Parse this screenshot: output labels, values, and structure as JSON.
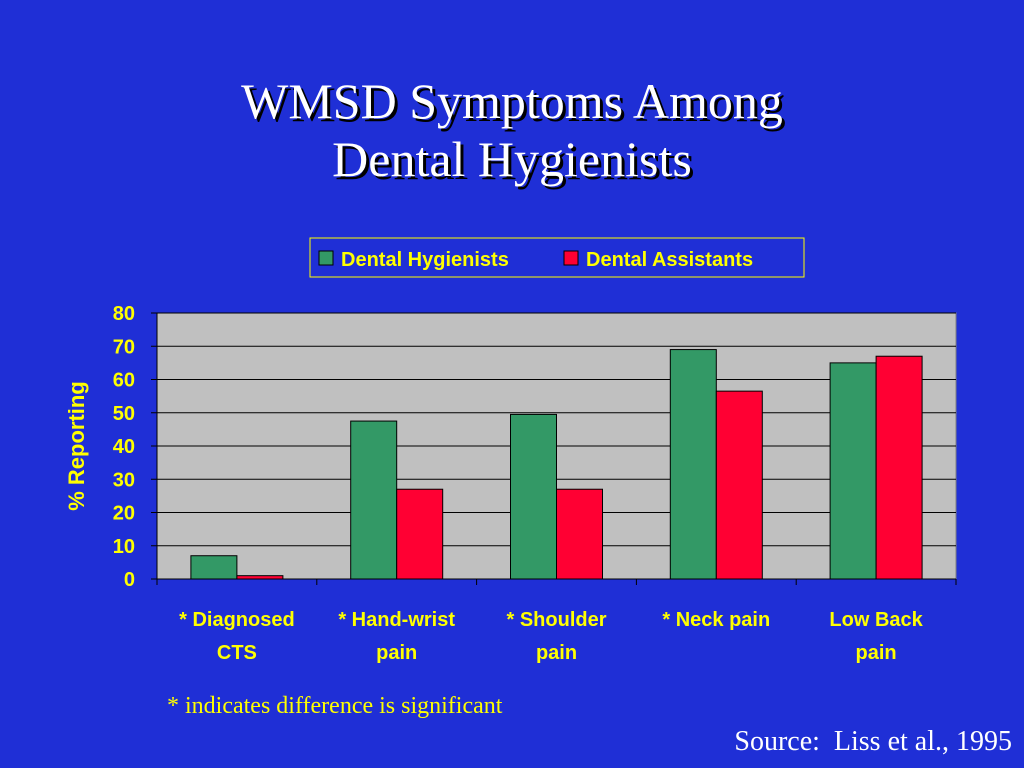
{
  "title": {
    "line1": "WMSD Symptoms Among",
    "line2": "Dental Hygienists"
  },
  "chart_data": {
    "type": "bar",
    "categories": [
      [
        "* Diagnosed",
        "CTS"
      ],
      [
        "* Hand-wrist",
        "pain"
      ],
      [
        "* Shoulder",
        "pain"
      ],
      [
        "* Neck pain"
      ],
      [
        "Low  Back",
        "pain"
      ]
    ],
    "series": [
      {
        "name": "Dental Hygienists",
        "color": "#339966",
        "values": [
          7,
          47.5,
          49.5,
          69,
          65
        ]
      },
      {
        "name": "Dental Assistants",
        "color": "#ff0033",
        "values": [
          1,
          27,
          27,
          56.5,
          67
        ]
      }
    ],
    "ylabel": "%  Reporting",
    "xlabel": "",
    "ylim": [
      0,
      80
    ],
    "yticks": [
      0,
      10,
      20,
      30,
      40,
      50,
      60,
      70,
      80
    ],
    "grid": true,
    "legend": "top",
    "plot_background": "#c0c0c0",
    "label_color": "#ffff00"
  },
  "footnote": "* indicates difference is significant",
  "source": "Source:  Liss et al., 1995"
}
